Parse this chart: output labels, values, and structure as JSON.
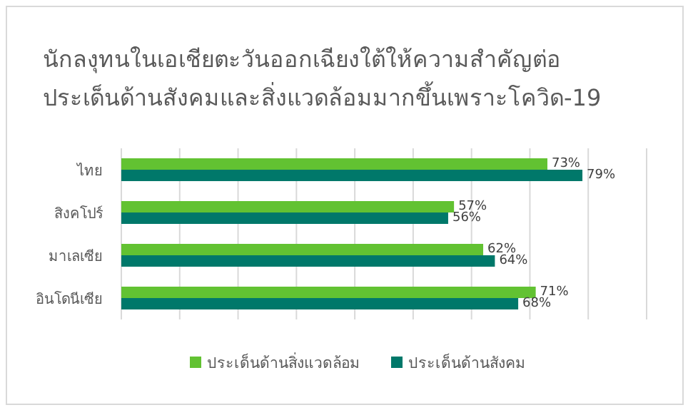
{
  "chart_data": {
    "type": "bar",
    "orientation": "horizontal",
    "title": "นักลงุทนในเอเชียตะวันออกเฉียงใต้ให้ความสำคัญต่อ\nประเด็นด้านสังคมและสิ่งแวดล้อมมากขึ้นเพราะโควิด-19",
    "categories": [
      "ไทย",
      "สิงคโปร์",
      "มาเลเซีย",
      "อินโดนีเซีย"
    ],
    "series": [
      {
        "name": "ประเด็นด้านสิ่งแวดล้อม",
        "color": "#62c232",
        "values": [
          73,
          57,
          62,
          71
        ],
        "value_labels": [
          "73%",
          "57%",
          "62%",
          "71%"
        ]
      },
      {
        "name": "ประเด็นด้านสังคม",
        "color": "#00786a",
        "values": [
          79,
          56,
          64,
          68
        ],
        "value_labels": [
          "79%",
          "56%",
          "64%",
          "68%"
        ]
      }
    ],
    "xlim": [
      0,
      90
    ],
    "xticks": [
      {
        "value": 0,
        "label": null
      },
      {
        "value": 10,
        "label": null
      },
      {
        "value": 20,
        "label": null
      },
      {
        "value": 30,
        "label": null
      },
      {
        "value": 40,
        "label": null
      },
      {
        "value": 50,
        "label": null
      },
      {
        "value": 60,
        "label": null
      },
      {
        "value": 70,
        "label": null
      },
      {
        "value": 80,
        "label": null
      },
      {
        "value": 90,
        "label": null
      }
    ],
    "grid": "x",
    "legend": "bottom",
    "tick_labels": "y"
  }
}
